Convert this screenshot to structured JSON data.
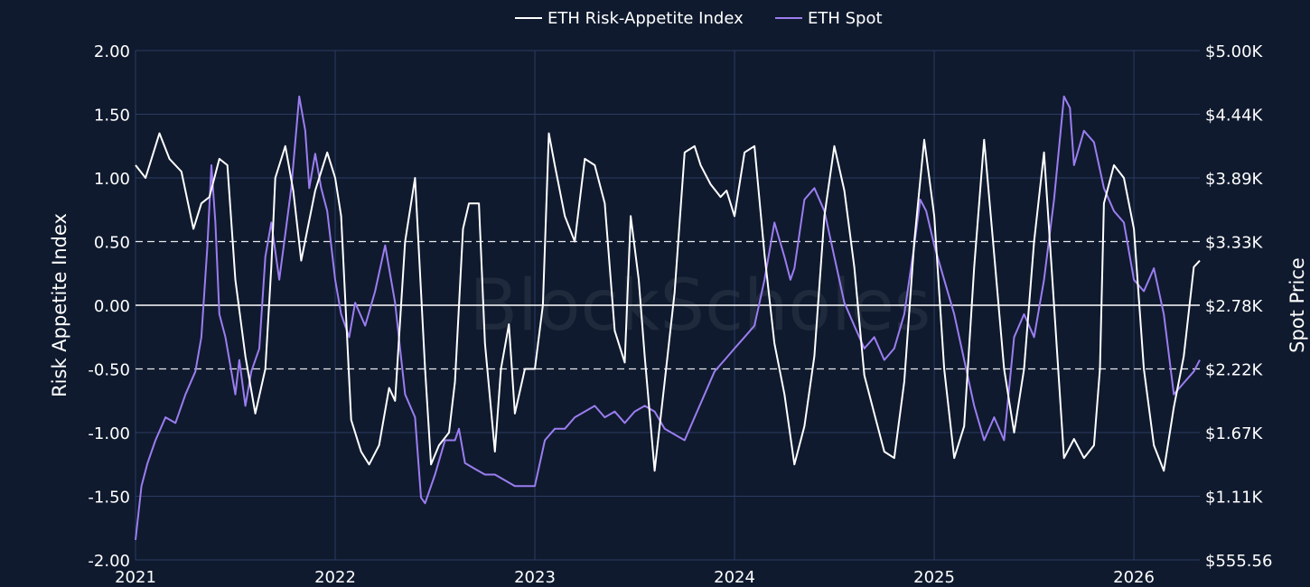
{
  "chart_data": {
    "type": "line",
    "title": "",
    "watermark": "BlockScholes",
    "xlabel": "",
    "ylabel": "Risk Appetite Index",
    "y2label": "Spot Price",
    "x_ticks": [
      "2021",
      "2022",
      "2023",
      "2024",
      "2025",
      "2026"
    ],
    "xlim": [
      2021.0,
      2026.33
    ],
    "ylim": [
      -2.0,
      2.0
    ],
    "y_ticks": [
      {
        "value": 2.0,
        "label": "2.00"
      },
      {
        "value": 1.5,
        "label": "1.50"
      },
      {
        "value": 1.0,
        "label": "1.00"
      },
      {
        "value": 0.5,
        "label": "0.50"
      },
      {
        "value": 0.0,
        "label": "0.00"
      },
      {
        "value": -0.5,
        "label": "-0.50"
      },
      {
        "value": -1.0,
        "label": "-1.00"
      },
      {
        "value": -1.5,
        "label": "-1.50"
      },
      {
        "value": -2.0,
        "label": "-2.00"
      }
    ],
    "y2lim": [
      555.56,
      5000
    ],
    "y2_ticks": [
      {
        "value": 5000,
        "label": "$5.00K"
      },
      {
        "value": 4444,
        "label": "$4.44K"
      },
      {
        "value": 3889,
        "label": "$3.89K"
      },
      {
        "value": 3333,
        "label": "$3.33K"
      },
      {
        "value": 2778,
        "label": "$2.78K"
      },
      {
        "value": 2222,
        "label": "$2.22K"
      },
      {
        "value": 1667,
        "label": "$1.67K"
      },
      {
        "value": 1111,
        "label": "$1.11K"
      },
      {
        "value": 555.56,
        "label": "$555.56"
      }
    ],
    "reference_lines": [
      {
        "value": 0.5,
        "style": "dashed"
      },
      {
        "value": 0.0,
        "style": "solid"
      },
      {
        "value": -0.5,
        "style": "dashed"
      }
    ],
    "legend": {
      "placement": "top-center",
      "entries": [
        "ETH Risk-Appetite Index",
        "ETH Spot"
      ]
    },
    "colors": {
      "background": "#0f1a2e",
      "grid": "#2b3c63",
      "risk": "#ffffff",
      "spot": "#9b7df0"
    },
    "series": [
      {
        "name": "ETH Risk-Appetite Index",
        "axis": "left",
        "color": "#ffffff",
        "x": [
          2021.0,
          2021.05,
          2021.09,
          2021.12,
          2021.17,
          2021.23,
          2021.29,
          2021.33,
          2021.37,
          2021.42,
          2021.46,
          2021.5,
          2021.55,
          2021.6,
          2021.65,
          2021.68,
          2021.7,
          2021.75,
          2021.79,
          2021.83,
          2021.9,
          2021.96,
          2022.0,
          2022.03,
          2022.08,
          2022.13,
          2022.17,
          2022.22,
          2022.27,
          2022.3,
          2022.35,
          2022.4,
          2022.45,
          2022.48,
          2022.52,
          2022.57,
          2022.6,
          2022.64,
          2022.67,
          2022.72,
          2022.75,
          2022.8,
          2022.83,
          2022.87,
          2022.9,
          2022.95,
          2023.0,
          2023.04,
          2023.07,
          2023.1,
          2023.15,
          2023.2,
          2023.25,
          2023.3,
          2023.35,
          2023.4,
          2023.45,
          2023.48,
          2023.52,
          2023.55,
          2023.6,
          2023.65,
          2023.7,
          2023.75,
          2023.8,
          2023.83,
          2023.88,
          2023.93,
          2023.96,
          2024.0,
          2024.05,
          2024.1,
          2024.15,
          2024.2,
          2024.25,
          2024.3,
          2024.35,
          2024.4,
          2024.45,
          2024.5,
          2024.55,
          2024.6,
          2024.65,
          2024.7,
          2024.75,
          2024.8,
          2024.85,
          2024.9,
          2024.95,
          2025.0,
          2025.05,
          2025.1,
          2025.15,
          2025.2,
          2025.25,
          2025.3,
          2025.35,
          2025.4,
          2025.45,
          2025.5,
          2025.55,
          2025.6,
          2025.65,
          2025.7,
          2025.75,
          2025.8,
          2025.83,
          2025.85,
          2025.9,
          2025.95,
          2026.0,
          2026.05,
          2026.1,
          2026.15,
          2026.2,
          2026.25,
          2026.3,
          2026.33
        ],
        "y": [
          1.1,
          1.0,
          1.2,
          1.35,
          1.15,
          1.05,
          0.6,
          0.8,
          0.85,
          1.15,
          1.1,
          0.2,
          -0.4,
          -0.85,
          -0.5,
          0.3,
          1.0,
          1.25,
          0.9,
          0.35,
          0.9,
          1.2,
          1.0,
          0.7,
          -0.9,
          -1.15,
          -1.25,
          -1.1,
          -0.65,
          -0.75,
          0.5,
          1.0,
          -0.5,
          -1.25,
          -1.1,
          -1.0,
          -0.6,
          0.6,
          0.8,
          0.8,
          -0.3,
          -1.15,
          -0.5,
          -0.15,
          -0.85,
          -0.5,
          -0.5,
          0.0,
          1.35,
          1.1,
          0.7,
          0.5,
          1.15,
          1.1,
          0.8,
          -0.2,
          -0.45,
          0.7,
          0.2,
          -0.4,
          -1.3,
          -0.6,
          0.1,
          1.2,
          1.25,
          1.1,
          0.95,
          0.85,
          0.9,
          0.7,
          1.2,
          1.25,
          0.4,
          -0.3,
          -0.7,
          -1.25,
          -0.95,
          -0.4,
          0.7,
          1.25,
          0.9,
          0.3,
          -0.55,
          -0.85,
          -1.15,
          -1.2,
          -0.6,
          0.5,
          1.3,
          0.7,
          -0.5,
          -1.2,
          -0.95,
          0.3,
          1.3,
          0.4,
          -0.5,
          -1.0,
          -0.5,
          0.5,
          1.2,
          0.0,
          -1.2,
          -1.05,
          -1.2,
          -1.1,
          -0.5,
          0.8,
          1.1,
          1.0,
          0.6,
          -0.5,
          -1.1,
          -1.3,
          -0.8,
          -0.4,
          0.3,
          0.35
        ]
      },
      {
        "name": "ETH Spot",
        "axis": "right",
        "color": "#9b7df0",
        "x": [
          2021.0,
          2021.03,
          2021.06,
          2021.1,
          2021.15,
          2021.2,
          2021.25,
          2021.3,
          2021.33,
          2021.36,
          2021.38,
          2021.4,
          2021.42,
          2021.45,
          2021.5,
          2021.52,
          2021.55,
          2021.58,
          2021.62,
          2021.65,
          2021.68,
          2021.72,
          2021.75,
          2021.78,
          2021.82,
          2021.85,
          2021.87,
          2021.9,
          2021.93,
          2021.96,
          2022.0,
          2022.03,
          2022.07,
          2022.1,
          2022.15,
          2022.2,
          2022.25,
          2022.28,
          2022.3,
          2022.35,
          2022.4,
          2022.43,
          2022.45,
          2022.48,
          2022.5,
          2022.55,
          2022.6,
          2022.62,
          2022.65,
          2022.7,
          2022.75,
          2022.8,
          2022.85,
          2022.9,
          2022.95,
          2023.0,
          2023.05,
          2023.1,
          2023.15,
          2023.2,
          2023.25,
          2023.3,
          2023.35,
          2023.4,
          2023.45,
          2023.5,
          2023.55,
          2023.6,
          2023.65,
          2023.7,
          2023.75,
          2023.8,
          2023.85,
          2023.9,
          2023.95,
          2024.0,
          2024.05,
          2024.1,
          2024.15,
          2024.2,
          2024.25,
          2024.28,
          2024.3,
          2024.35,
          2024.4,
          2024.45,
          2024.5,
          2024.55,
          2024.6,
          2024.65,
          2024.7,
          2024.75,
          2024.8,
          2024.85,
          2024.9,
          2024.93,
          2024.96,
          2025.0,
          2025.05,
          2025.1,
          2025.15,
          2025.2,
          2025.25,
          2025.3,
          2025.35,
          2025.4,
          2025.45,
          2025.5,
          2025.55,
          2025.6,
          2025.65,
          2025.68,
          2025.7,
          2025.75,
          2025.8,
          2025.85,
          2025.9,
          2025.95,
          2026.0,
          2026.05,
          2026.1,
          2026.15,
          2026.2,
          2026.25,
          2026.3,
          2026.33
        ],
        "y": [
          730,
          1200,
          1400,
          1600,
          1800,
          1750,
          2000,
          2200,
          2500,
          3300,
          4000,
          3500,
          2700,
          2500,
          2000,
          2300,
          1900,
          2200,
          2400,
          3200,
          3500,
          3000,
          3400,
          3800,
          4600,
          4300,
          3800,
          4100,
          3800,
          3600,
          3000,
          2700,
          2500,
          2800,
          2600,
          2900,
          3300,
          3000,
          2800,
          2000,
          1800,
          1100,
          1050,
          1200,
          1300,
          1600,
          1600,
          1700,
          1400,
          1350,
          1300,
          1300,
          1250,
          1200,
          1200,
          1200,
          1600,
          1700,
          1700,
          1800,
          1850,
          1900,
          1800,
          1850,
          1750,
          1850,
          1900,
          1850,
          1700,
          1650,
          1600,
          1800,
          2000,
          2200,
          2300,
          2400,
          2500,
          2600,
          3000,
          3500,
          3200,
          3000,
          3100,
          3700,
          3800,
          3600,
          3200,
          2800,
          2600,
          2400,
          2500,
          2300,
          2400,
          2700,
          3300,
          3700,
          3600,
          3300,
          3000,
          2700,
          2300,
          1900,
          1600,
          1800,
          1600,
          2500,
          2700,
          2500,
          3000,
          3700,
          4600,
          4500,
          4000,
          4300,
          4200,
          3800,
          3600,
          3500,
          3000,
          2900,
          3100,
          2700,
          2000,
          2100,
          2200,
          2300
        ]
      }
    ]
  }
}
